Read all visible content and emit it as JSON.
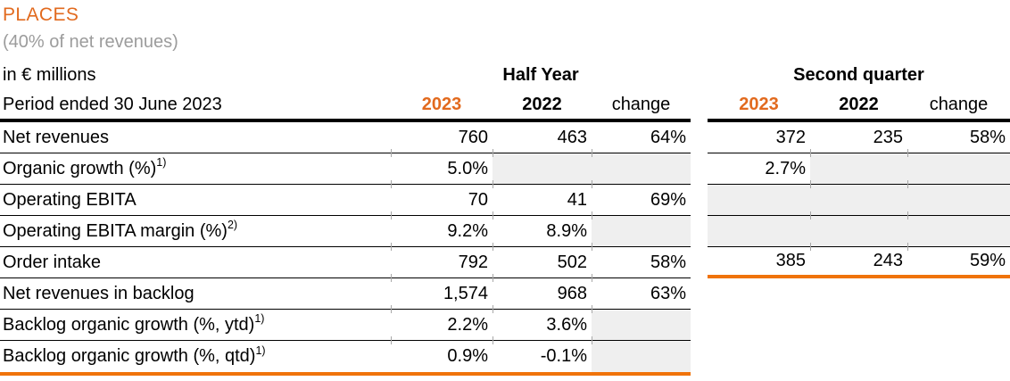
{
  "page": {
    "title": "PLACES",
    "subtitle": "(40% of net revenues)",
    "unit_label": "in € millions",
    "period_label": "Period ended 30 June 2023"
  },
  "table": {
    "groups": [
      {
        "label": "Half Year"
      },
      {
        "label": "Second quarter"
      }
    ],
    "columns": {
      "y2023": "2023",
      "y2022": "2022",
      "change": "change"
    },
    "rows": [
      {
        "label": "Net revenues",
        "sup": "",
        "hy_2023": "760",
        "hy_2022": "463",
        "hy_change": "64%",
        "q2_2023": "372",
        "q2_2022": "235",
        "q2_change": "58%",
        "shaded": []
      },
      {
        "label": "Organic growth (%)",
        "sup": "1)",
        "hy_2023": "5.0%",
        "hy_2022": "",
        "hy_change": "",
        "q2_2023": "2.7%",
        "q2_2022": "",
        "q2_change": "",
        "shaded": [
          "hy_2022",
          "hy_change",
          "q2_2022",
          "q2_change"
        ]
      },
      {
        "label": "Operating EBITA",
        "sup": "",
        "hy_2023": "70",
        "hy_2022": "41",
        "hy_change": "69%",
        "q2_2023": "",
        "q2_2022": "",
        "q2_change": "",
        "shaded": [
          "q2_2023",
          "q2_2022",
          "q2_change"
        ]
      },
      {
        "label": "Operating EBITA margin (%)",
        "sup": "2)",
        "hy_2023": "9.2%",
        "hy_2022": "8.9%",
        "hy_change": "",
        "q2_2023": "",
        "q2_2022": "",
        "q2_change": "",
        "shaded": [
          "hy_change",
          "q2_2023",
          "q2_2022",
          "q2_change"
        ]
      },
      {
        "label": "Order intake",
        "sup": "",
        "hy_2023": "792",
        "hy_2022": "502",
        "hy_change": "58%",
        "q2_2023": "385",
        "q2_2022": "243",
        "q2_change": "59%",
        "shaded": []
      },
      {
        "label": "Net revenues in backlog",
        "sup": "",
        "hy_2023": "1,574",
        "hy_2022": "968",
        "hy_change": "63%",
        "q2_2023": "",
        "q2_2022": "",
        "q2_change": "",
        "shaded": []
      },
      {
        "label": "Backlog organic growth (%, ytd)",
        "sup": "1)",
        "hy_2023": "2.2%",
        "hy_2022": "3.6%",
        "hy_change": "",
        "q2_2023": "",
        "q2_2022": "",
        "q2_change": "",
        "shaded": [
          "hy_change"
        ]
      },
      {
        "label": "Backlog organic growth (%, qtd)",
        "sup": "1)",
        "hy_2023": "0.9%",
        "hy_2022": "-0.1%",
        "hy_change": "",
        "q2_2023": "",
        "q2_2022": "",
        "q2_change": "",
        "shaded": [
          "hy_change"
        ]
      }
    ]
  },
  "colors": {
    "orange_text": "#E26A1E",
    "orange_border": "#F0730A",
    "subtitle_gray": "#9C9C9C",
    "shaded_cell": "#EFEFEF",
    "rule_black": "#000000"
  }
}
